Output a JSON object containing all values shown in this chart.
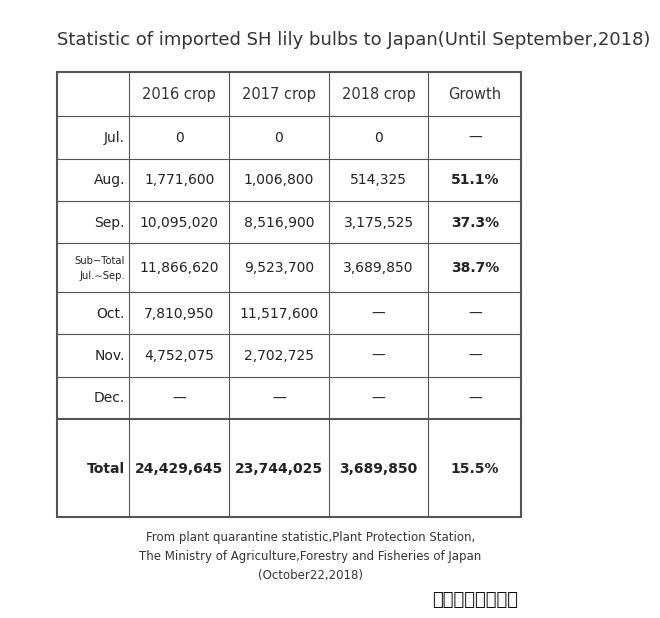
{
  "title": "Statistic of imported SH lily bulbs to Japan(Until September,2018)",
  "title_fontsize": 13,
  "columns": [
    "",
    "2016 crop",
    "2017 crop",
    "2018 crop",
    "Growth"
  ],
  "rows": [
    {
      "label": "Jul.",
      "label2": "",
      "vals": [
        "0",
        "0",
        "0",
        "—"
      ],
      "bold": [
        false,
        false,
        false,
        false
      ]
    },
    {
      "label": "Aug.",
      "label2": "",
      "vals": [
        "1,771,600",
        "1,006,800",
        "514,325",
        "51.1%"
      ],
      "bold": [
        false,
        false,
        false,
        true
      ]
    },
    {
      "label": "Sep.",
      "label2": "",
      "vals": [
        "10,095,020",
        "8,516,900",
        "3,175,525",
        "37.3%"
      ],
      "bold": [
        false,
        false,
        false,
        true
      ]
    },
    {
      "label": "Sub−Total",
      "label2": "Jul.∼Sep.",
      "vals": [
        "11,866,620",
        "9,523,700",
        "3,689,850",
        "38.7%"
      ],
      "bold": [
        false,
        false,
        false,
        true
      ]
    },
    {
      "label": "Oct.",
      "label2": "",
      "vals": [
        "7,810,950",
        "11,517,600",
        "—",
        "—"
      ],
      "bold": [
        false,
        false,
        false,
        false
      ]
    },
    {
      "label": "Nov.",
      "label2": "",
      "vals": [
        "4,752,075",
        "2,702,725",
        "—",
        "—"
      ],
      "bold": [
        false,
        false,
        false,
        false
      ]
    },
    {
      "label": "Dec.",
      "label2": "",
      "vals": [
        "—",
        "—",
        "—",
        "—"
      ],
      "bold": [
        false,
        false,
        false,
        false
      ]
    },
    {
      "label": "Total",
      "label2": "",
      "vals": [
        "24,429,645",
        "23,744,025",
        "3,689,850",
        "15.5%"
      ],
      "bold": [
        true,
        true,
        true,
        true
      ]
    }
  ],
  "footer_lines": [
    "From plant quarantine statistic,Plant Protection Station,",
    "The Ministry of Agriculture,Forestry and Fisheries of Japan",
    "(October22,2018)"
  ],
  "background_color": "#ffffff",
  "table_border_color": "#555555",
  "header_text_color": "#333333",
  "cell_text_color": "#222222"
}
